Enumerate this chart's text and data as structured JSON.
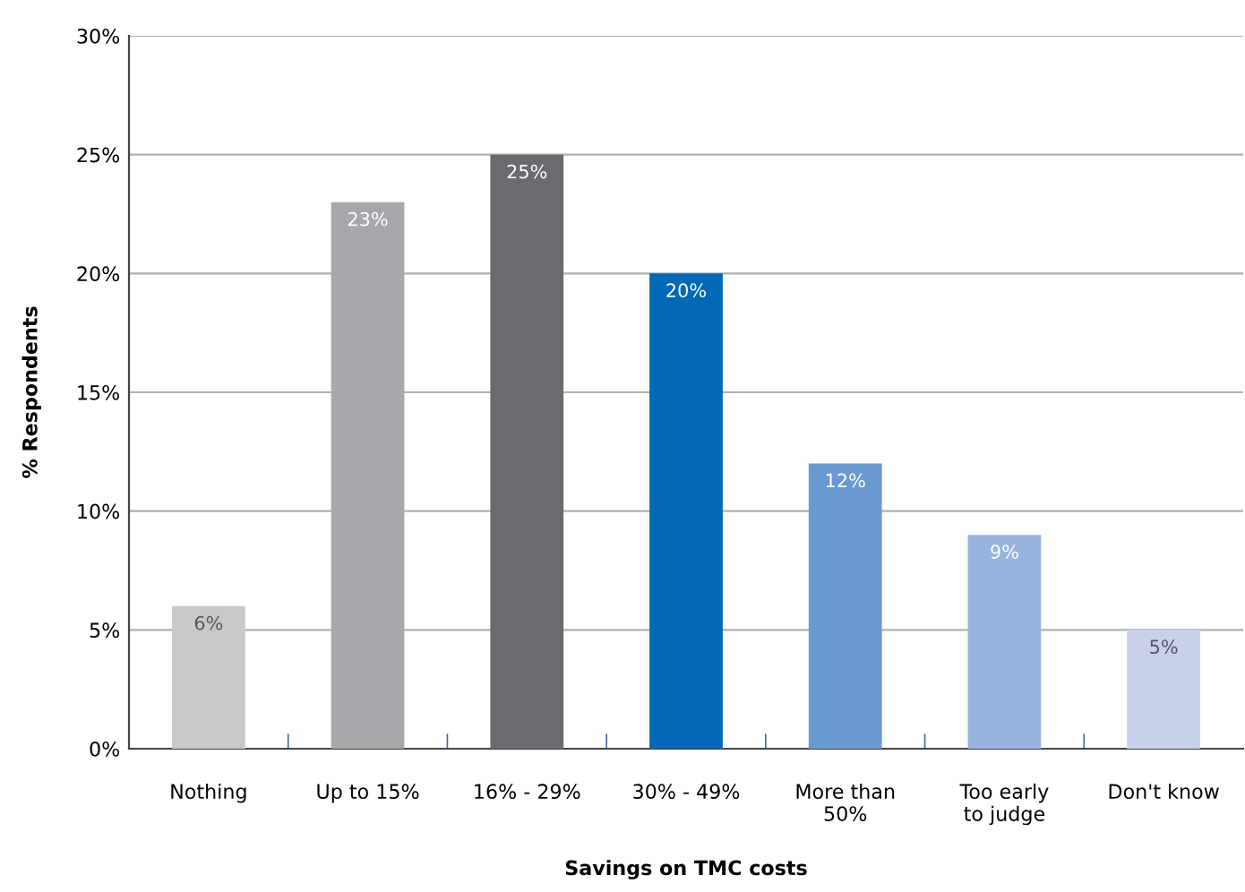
{
  "chart_data": {
    "type": "bar",
    "xlabel": "Savings on TMC costs",
    "ylabel": "% Respondents",
    "categories": [
      "Nothing",
      "Up to 15%",
      "16% - 29%",
      "30% - 49%",
      "More than\n50%",
      "Too early\nto judge",
      "Don't know"
    ],
    "values": [
      6,
      23,
      25,
      20,
      12,
      9,
      5
    ],
    "colors": [
      "#c8c9cb",
      "#a7a8ac",
      "#6a6a70",
      "#0068b4",
      "#6a98d0",
      "#97b3de",
      "#c9d0ea"
    ],
    "value_labels": [
      "6%",
      "23%",
      "25%",
      "20%",
      "12%",
      "9%",
      "5%"
    ],
    "ylim": [
      0,
      30
    ],
    "yticks": [
      {
        "value": 0,
        "label": "0%"
      },
      {
        "value": 5,
        "label": "5%"
      },
      {
        "value": 10,
        "label": "10%"
      },
      {
        "value": 15,
        "label": "15%"
      },
      {
        "value": 20,
        "label": "20%"
      },
      {
        "value": 25,
        "label": "25%"
      },
      {
        "value": 30,
        "label": "30%"
      }
    ],
    "grid": "y",
    "legend": false
  }
}
